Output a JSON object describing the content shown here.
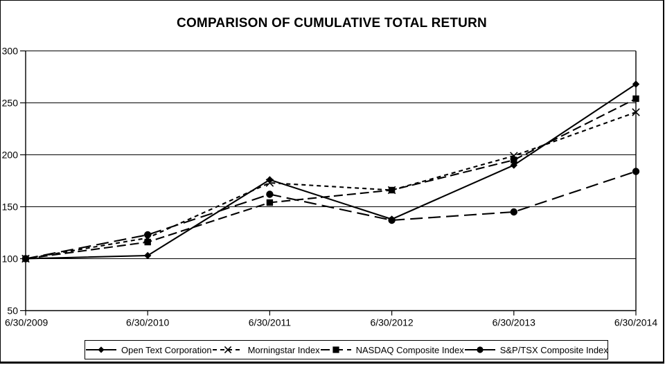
{
  "title": "COMPARISON OF CUMULATIVE TOTAL RETURN",
  "colors": {
    "line": "#000000",
    "background": "#ffffff",
    "text": "#000000"
  },
  "chart_data": {
    "type": "line",
    "title": "COMPARISON OF CUMULATIVE TOTAL RETURN",
    "categories": [
      "6/30/2009",
      "6/30/2010",
      "6/30/2011",
      "6/30/2012",
      "6/30/2013",
      "6/30/2014"
    ],
    "series": [
      {
        "name": "Open Text Corporation",
        "marker": "diamond",
        "line": "solid",
        "values": [
          100,
          103,
          176,
          138,
          190,
          268
        ]
      },
      {
        "name": "Morningstar Index",
        "marker": "x",
        "line": "short-dash",
        "values": [
          100,
          120,
          173,
          166,
          199,
          241
        ]
      },
      {
        "name": "NASDAQ Composite Index",
        "marker": "square",
        "line": "dash",
        "values": [
          100,
          116,
          154,
          166,
          195,
          254
        ]
      },
      {
        "name": "S&P/TSX Composite Index",
        "marker": "circle",
        "line": "long-dash",
        "values": [
          100,
          123,
          162,
          137,
          145,
          184
        ]
      }
    ],
    "xlabel": "",
    "ylabel": "",
    "ylim": [
      50,
      300
    ],
    "yticks": [
      50,
      100,
      150,
      200,
      250,
      300
    ],
    "grid": true,
    "legend_position": "bottom"
  }
}
